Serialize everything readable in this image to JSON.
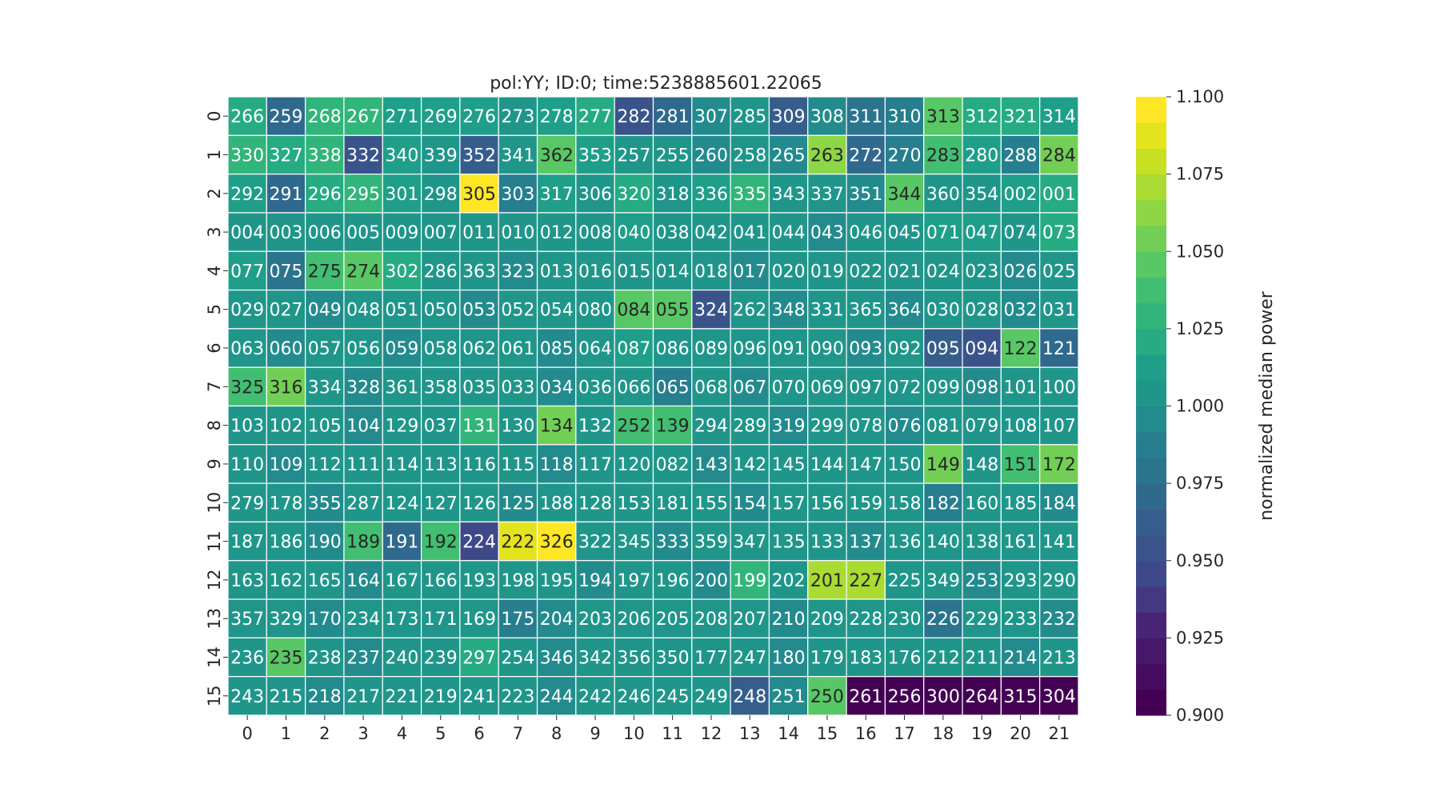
{
  "chart_data": {
    "type": "heatmap",
    "title": "pol:YY; ID:0; time:5238885601.22065",
    "xlabel": "",
    "ylabel": "",
    "x_tick_labels": [
      "0",
      "1",
      "2",
      "3",
      "4",
      "5",
      "6",
      "7",
      "8",
      "9",
      "10",
      "11",
      "12",
      "13",
      "14",
      "15",
      "16",
      "17",
      "18",
      "19",
      "20",
      "21"
    ],
    "y_tick_labels": [
      "0",
      "1",
      "2",
      "3",
      "4",
      "5",
      "6",
      "7",
      "8",
      "9",
      "10",
      "11",
      "12",
      "13",
      "14",
      "15"
    ],
    "annotations": [
      [
        "266",
        "259",
        "268",
        "267",
        "271",
        "269",
        "276",
        "273",
        "278",
        "277",
        "282",
        "281",
        "307",
        "285",
        "309",
        "308",
        "311",
        "310",
        "313",
        "312",
        "321",
        "314"
      ],
      [
        "330",
        "327",
        "338",
        "332",
        "340",
        "339",
        "352",
        "341",
        "362",
        "353",
        "257",
        "255",
        "260",
        "258",
        "265",
        "263",
        "272",
        "270",
        "283",
        "280",
        "288",
        "284"
      ],
      [
        "292",
        "291",
        "296",
        "295",
        "301",
        "298",
        "305",
        "303",
        "317",
        "306",
        "320",
        "318",
        "336",
        "335",
        "343",
        "337",
        "351",
        "344",
        "360",
        "354",
        "002",
        "001"
      ],
      [
        "004",
        "003",
        "006",
        "005",
        "009",
        "007",
        "011",
        "010",
        "012",
        "008",
        "040",
        "038",
        "042",
        "041",
        "044",
        "043",
        "046",
        "045",
        "071",
        "047",
        "074",
        "073"
      ],
      [
        "077",
        "075",
        "275",
        "274",
        "302",
        "286",
        "363",
        "323",
        "013",
        "016",
        "015",
        "014",
        "018",
        "017",
        "020",
        "019",
        "022",
        "021",
        "024",
        "023",
        "026",
        "025"
      ],
      [
        "029",
        "027",
        "049",
        "048",
        "051",
        "050",
        "053",
        "052",
        "054",
        "080",
        "084",
        "055",
        "324",
        "262",
        "348",
        "331",
        "365",
        "364",
        "030",
        "028",
        "032",
        "031"
      ],
      [
        "063",
        "060",
        "057",
        "056",
        "059",
        "058",
        "062",
        "061",
        "085",
        "064",
        "087",
        "086",
        "089",
        "096",
        "091",
        "090",
        "093",
        "092",
        "095",
        "094",
        "122",
        "121"
      ],
      [
        "325",
        "316",
        "334",
        "328",
        "361",
        "358",
        "035",
        "033",
        "034",
        "036",
        "066",
        "065",
        "068",
        "067",
        "070",
        "069",
        "097",
        "072",
        "099",
        "098",
        "101",
        "100"
      ],
      [
        "103",
        "102",
        "105",
        "104",
        "129",
        "037",
        "131",
        "130",
        "134",
        "132",
        "252",
        "139",
        "294",
        "289",
        "319",
        "299",
        "078",
        "076",
        "081",
        "079",
        "108",
        "107"
      ],
      [
        "110",
        "109",
        "112",
        "111",
        "114",
        "113",
        "116",
        "115",
        "118",
        "117",
        "120",
        "082",
        "143",
        "142",
        "145",
        "144",
        "147",
        "150",
        "149",
        "148",
        "151",
        "172"
      ],
      [
        "279",
        "178",
        "355",
        "287",
        "124",
        "127",
        "126",
        "125",
        "188",
        "128",
        "153",
        "181",
        "155",
        "154",
        "157",
        "156",
        "159",
        "158",
        "182",
        "160",
        "185",
        "184"
      ],
      [
        "187",
        "186",
        "190",
        "189",
        "191",
        "192",
        "224",
        "222",
        "326",
        "322",
        "345",
        "333",
        "359",
        "347",
        "135",
        "133",
        "137",
        "136",
        "140",
        "138",
        "161",
        "141"
      ],
      [
        "163",
        "162",
        "165",
        "164",
        "167",
        "166",
        "193",
        "198",
        "195",
        "194",
        "197",
        "196",
        "200",
        "199",
        "202",
        "201",
        "227",
        "225",
        "349",
        "253",
        "293",
        "290"
      ],
      [
        "357",
        "329",
        "170",
        "234",
        "173",
        "171",
        "169",
        "175",
        "204",
        "203",
        "206",
        "205",
        "208",
        "207",
        "210",
        "209",
        "228",
        "230",
        "226",
        "229",
        "233",
        "232"
      ],
      [
        "236",
        "235",
        "238",
        "237",
        "240",
        "239",
        "297",
        "254",
        "346",
        "342",
        "356",
        "350",
        "177",
        "247",
        "180",
        "179",
        "183",
        "176",
        "212",
        "211",
        "214",
        "213"
      ],
      [
        "243",
        "215",
        "218",
        "217",
        "221",
        "219",
        "241",
        "223",
        "244",
        "242",
        "246",
        "245",
        "249",
        "248",
        "251",
        "250",
        "261",
        "256",
        "300",
        "264",
        "315",
        "304"
      ]
    ],
    "values": [
      [
        1.025,
        0.97,
        1.028,
        1.03,
        1.01,
        1.012,
        1.01,
        1.008,
        1.01,
        1.018,
        0.958,
        0.97,
        1.0,
        1.005,
        0.962,
        1.0,
        0.978,
        0.985,
        1.048,
        1.02,
        1.022,
        1.012
      ],
      [
        1.032,
        1.022,
        1.026,
        0.958,
        1.012,
        1.008,
        0.965,
        1.002,
        1.048,
        1.01,
        1.002,
        1.005,
        1.0,
        1.005,
        1.0,
        1.06,
        0.975,
        0.988,
        1.04,
        1.01,
        0.985,
        1.052
      ],
      [
        1.01,
        0.975,
        1.018,
        1.03,
        1.012,
        1.008,
        1.1,
        0.985,
        1.01,
        1.005,
        1.022,
        1.008,
        1.01,
        1.03,
        1.002,
        1.005,
        1.0,
        1.045,
        1.005,
        1.008,
        1.01,
        1.018
      ],
      [
        1.005,
        1.002,
        1.008,
        1.005,
        1.008,
        1.002,
        1.008,
        1.005,
        1.008,
        1.005,
        1.012,
        1.005,
        1.005,
        1.008,
        1.002,
        1.0,
        1.005,
        1.008,
        1.015,
        1.01,
        1.005,
        1.025
      ],
      [
        1.015,
        0.98,
        1.04,
        1.045,
        1.022,
        1.005,
        1.008,
        1.0,
        1.005,
        1.005,
        1.008,
        1.002,
        1.005,
        1.0,
        1.005,
        1.008,
        1.005,
        1.005,
        1.005,
        1.008,
        1.0,
        1.005
      ],
      [
        1.002,
        1.005,
        1.0,
        1.005,
        1.008,
        1.002,
        1.0,
        1.008,
        1.005,
        1.008,
        1.05,
        1.048,
        0.955,
        1.005,
        1.0,
        1.005,
        1.008,
        1.0,
        1.005,
        1.008,
        1.0,
        1.002
      ],
      [
        1.005,
        1.0,
        1.008,
        1.005,
        1.0,
        1.005,
        1.008,
        1.005,
        1.0,
        1.005,
        1.012,
        1.005,
        1.008,
        1.002,
        1.005,
        1.008,
        1.0,
        1.005,
        0.965,
        0.958,
        1.048,
        0.975
      ],
      [
        1.04,
        1.052,
        1.005,
        1.0,
        1.005,
        1.002,
        1.008,
        1.005,
        1.0,
        1.005,
        1.008,
        0.985,
        1.005,
        1.0,
        1.008,
        1.005,
        1.002,
        1.008,
        1.005,
        1.0,
        1.005,
        1.008
      ],
      [
        1.005,
        1.002,
        1.008,
        1.0,
        1.005,
        1.008,
        1.03,
        1.005,
        1.058,
        1.008,
        1.04,
        1.035,
        1.005,
        1.008,
        1.0,
        1.005,
        1.008,
        1.0,
        1.005,
        1.008,
        1.002,
        1.005
      ],
      [
        1.005,
        1.0,
        1.008,
        1.005,
        1.008,
        1.002,
        1.005,
        1.008,
        1.0,
        1.005,
        1.008,
        1.005,
        1.0,
        1.005,
        1.008,
        1.002,
        1.005,
        1.008,
        1.058,
        1.005,
        1.04,
        1.058
      ],
      [
        1.005,
        1.008,
        1.0,
        1.005,
        1.002,
        1.008,
        1.005,
        1.0,
        1.008,
        1.005,
        1.002,
        1.008,
        1.005,
        1.0,
        1.008,
        1.005,
        1.002,
        1.008,
        0.99,
        1.005,
        1.008,
        1.0
      ],
      [
        1.005,
        1.008,
        1.0,
        1.04,
        0.97,
        1.04,
        0.945,
        1.085,
        1.1,
        1.005,
        1.008,
        1.0,
        1.005,
        1.002,
        1.008,
        1.005,
        1.0,
        1.008,
        1.005,
        1.002,
        1.008,
        1.005
      ],
      [
        1.005,
        1.002,
        1.008,
        1.0,
        1.005,
        1.008,
        1.002,
        1.005,
        1.008,
        1.0,
        1.005,
        1.008,
        1.0,
        1.03,
        1.005,
        1.075,
        1.068,
        1.005,
        1.008,
        1.0,
        1.005,
        1.008
      ],
      [
        1.005,
        1.008,
        1.0,
        1.005,
        1.008,
        1.002,
        1.005,
        0.985,
        1.0,
        1.005,
        1.008,
        1.002,
        1.005,
        1.008,
        1.0,
        1.005,
        1.008,
        1.002,
        0.98,
        1.005,
        1.008,
        1.0
      ],
      [
        1.005,
        1.05,
        1.008,
        1.0,
        1.005,
        1.008,
        1.02,
        1.005,
        1.0,
        1.008,
        1.005,
        1.002,
        1.005,
        1.008,
        1.0,
        1.005,
        1.008,
        1.002,
        1.005,
        1.008,
        1.0,
        1.005
      ],
      [
        1.005,
        1.008,
        1.0,
        1.005,
        1.008,
        1.002,
        1.005,
        1.008,
        1.0,
        1.005,
        1.008,
        1.002,
        1.005,
        0.965,
        1.0,
        1.045,
        0.9,
        0.9,
        0.9,
        0.9,
        0.9,
        0.9
      ]
    ],
    "colormap": "viridis",
    "vmin": 0.9,
    "vmax": 1.1,
    "colorbar": {
      "label": "normalized median power",
      "ticks": [
        "0.900",
        "0.925",
        "0.950",
        "0.975",
        "1.000",
        "1.025",
        "1.050",
        "1.075",
        "1.100"
      ],
      "levels": 24
    },
    "grid": false,
    "cell_border_color": "#ffffff"
  }
}
